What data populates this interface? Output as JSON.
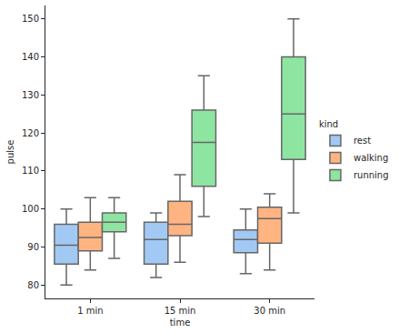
{
  "chart_data": {
    "type": "box",
    "x_label": "time",
    "y_label": "pulse",
    "legend_title": "kind",
    "legend": "right",
    "grid": false,
    "categories": [
      "1 min",
      "15 min",
      "30 min"
    ],
    "ylim": [
      76.5,
      153.5
    ],
    "yticks": [
      80,
      90,
      100,
      110,
      120,
      130,
      140,
      150
    ],
    "series": [
      {
        "name": "rest",
        "color": "#a1c9f4",
        "lower": [
          80,
          82,
          83
        ],
        "q1": [
          85.5,
          85.5,
          88.5
        ],
        "median": [
          90.5,
          92,
          92
        ],
        "q3": [
          96,
          96.5,
          94.5
        ],
        "upper": [
          100,
          99,
          100
        ]
      },
      {
        "name": "walking",
        "color": "#ffb482",
        "lower": [
          84,
          86,
          84
        ],
        "q1": [
          89,
          93,
          91
        ],
        "median": [
          92.5,
          96,
          97.5
        ],
        "q3": [
          96.5,
          102,
          100.5
        ],
        "upper": [
          103,
          109,
          104
        ]
      },
      {
        "name": "running",
        "color": "#8de5a1",
        "lower": [
          87,
          98,
          99
        ],
        "q1": [
          94,
          106,
          113
        ],
        "median": [
          96.5,
          117.5,
          125
        ],
        "q3": [
          99,
          126,
          140
        ],
        "upper": [
          103,
          135,
          150
        ]
      }
    ]
  }
}
